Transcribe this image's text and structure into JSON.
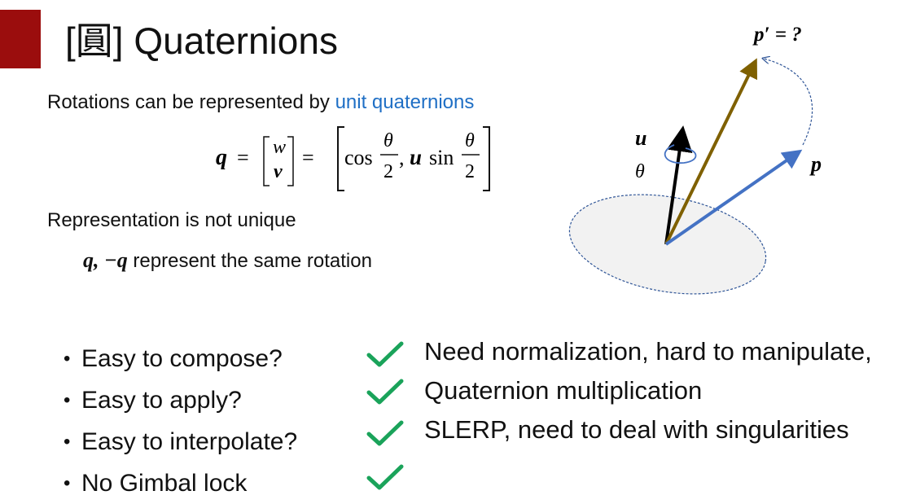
{
  "title": "[圓] Quaternions",
  "intro": {
    "text": "Rotations can be represented by ",
    "highlight": "unit quaternions",
    "highlight_color": "#1f6fc5"
  },
  "formula": {
    "lhs": "q",
    "equals": "=",
    "vec_top": "w",
    "vec_bottom": "v",
    "cos": "cos",
    "sin": "sin",
    "theta": "θ",
    "two": "2",
    "comma": ",",
    "u": "u"
  },
  "representation_text": "Representation is not unique",
  "equivalence": {
    "math": "q, −q",
    "text": " represent the same rotation"
  },
  "bullets": [
    {
      "label": "Easy to compose?"
    },
    {
      "label": "Easy to apply?"
    },
    {
      "label": "Easy to interpolate?"
    },
    {
      "label": "No Gimbal lock"
    }
  ],
  "notes": [
    "Need normalization, hard to manipulate,",
    "Quaternion multiplication",
    "SLERP, need to deal with singularities"
  ],
  "diagram": {
    "p_prime_label": "p′ = ?",
    "u_label": "u",
    "theta_label": "θ",
    "p_label": "p",
    "colors": {
      "u_axis": "#000000",
      "p_vector": "#4472c4",
      "p_prime_vector": "#7f6000",
      "ellipse_fill": "#f2f2f2",
      "ellipse_stroke": "#2f5597",
      "check": "#1aa35a",
      "title_bar": "#9b0d0d"
    }
  }
}
